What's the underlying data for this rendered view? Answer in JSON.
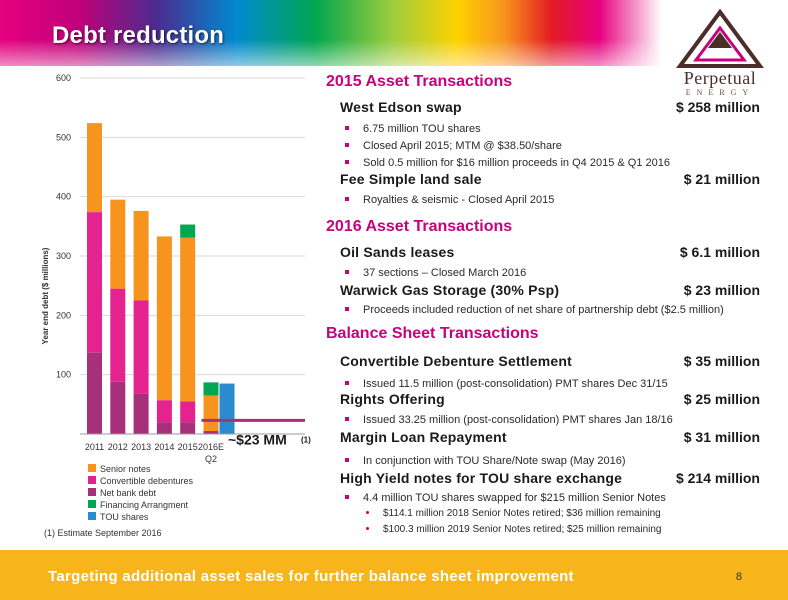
{
  "header": {
    "title": "Debt reduction",
    "logo_name": "Perpetual",
    "logo_sub": "ENERGY"
  },
  "chart_data": {
    "type": "bar",
    "stacked": true,
    "categories": [
      "2011",
      "2012",
      "2013",
      "2014",
      "2015",
      "2016E"
    ],
    "category_sublabels": [
      "",
      "",
      "",
      "",
      "",
      "Q2"
    ],
    "ylabel": "Year end debt ($ millions)",
    "ylim": [
      0,
      600
    ],
    "yticks": [
      100,
      200,
      300,
      400,
      500,
      600
    ],
    "grid": true,
    "series": [
      {
        "name": "Net bank debt",
        "color": "#a7307a",
        "values": [
          137,
          88,
          68,
          20,
          20,
          5
        ]
      },
      {
        "name": "Convertible debentures",
        "color": "#e4238f",
        "values": [
          237,
          157,
          157,
          37,
          35,
          0
        ]
      },
      {
        "name": "Senior notes",
        "color": "#f7941d",
        "values": [
          150,
          150,
          151,
          276,
          276,
          60
        ]
      },
      {
        "name": "Financing Arrangment",
        "color": "#00a651",
        "values": [
          0,
          0,
          0,
          0,
          22,
          22
        ]
      },
      {
        "name": "TOU shares",
        "color": "#2a8ccf",
        "values": [
          0,
          0,
          0,
          0,
          0,
          0
        ]
      }
    ],
    "extra_bars": [
      {
        "category_after": "2016E",
        "name": "TOU shares",
        "color": "#2a8ccf",
        "value": 85
      }
    ],
    "target_line": {
      "value": 23,
      "color": "#a7307a"
    },
    "annotation": "~$23 MM",
    "annotation_note": "(1)",
    "legend_position": "bottom-left"
  },
  "sections": [
    {
      "heading": "2015 Asset Transactions",
      "items": [
        {
          "title": "West Edson swap",
          "amount": "$ 258 million",
          "bullets": [
            "6.75 million TOU shares",
            "Closed April 2015; MTM @ $38.50/share",
            "Sold 0.5 million for $16 million proceeds in Q4 2015 & Q1 2016"
          ]
        },
        {
          "title": "Fee Simple land sale",
          "amount": "$ 21 million",
          "bullets": [
            "Royalties & seismic - Closed April 2015"
          ]
        }
      ]
    },
    {
      "heading": "2016 Asset Transactions",
      "items": [
        {
          "title": "Oil Sands leases",
          "amount": "$ 6.1 million",
          "bullets": [
            "37 sections – Closed March 2016"
          ]
        },
        {
          "title": "Warwick Gas Storage (30% Psp)",
          "amount": "$ 23 million",
          "bullets": [
            "Proceeds included reduction of net share of partnership debt ($2.5 million)"
          ]
        }
      ]
    },
    {
      "heading": "Balance Sheet Transactions",
      "items": [
        {
          "title": "Convertible Debenture Settlement",
          "amount": "$ 35 million",
          "bullets": [
            "Issued 11.5 million (post-consolidation) PMT shares Dec 31/15"
          ]
        },
        {
          "title": "Rights Offering",
          "amount": "$ 25 million",
          "bullets": [
            "Issued 33.25 million (post-consolidation) PMT shares Jan 18/16"
          ]
        },
        {
          "title": "Margin Loan Repayment",
          "amount": "$ 31 million",
          "bullets": [
            "In conjunction with TOU Share/Note swap (May 2016)"
          ]
        },
        {
          "title": "High Yield notes for TOU share exchange",
          "amount": "$ 214 million",
          "bullets": [
            "4.4 million TOU shares swapped for $215 million Senior Notes"
          ],
          "sub_bullets": [
            "$114.1 million 2018 Senior Notes retired; $36 million remaining",
            "$100.3 million 2019 Senior Notes retired; $25 million remaining"
          ]
        }
      ]
    }
  ],
  "footnote": "(1)   Estimate September 2016",
  "footer": {
    "text": "Targeting additional asset sales for further balance sheet improvement",
    "page_number": "8"
  }
}
